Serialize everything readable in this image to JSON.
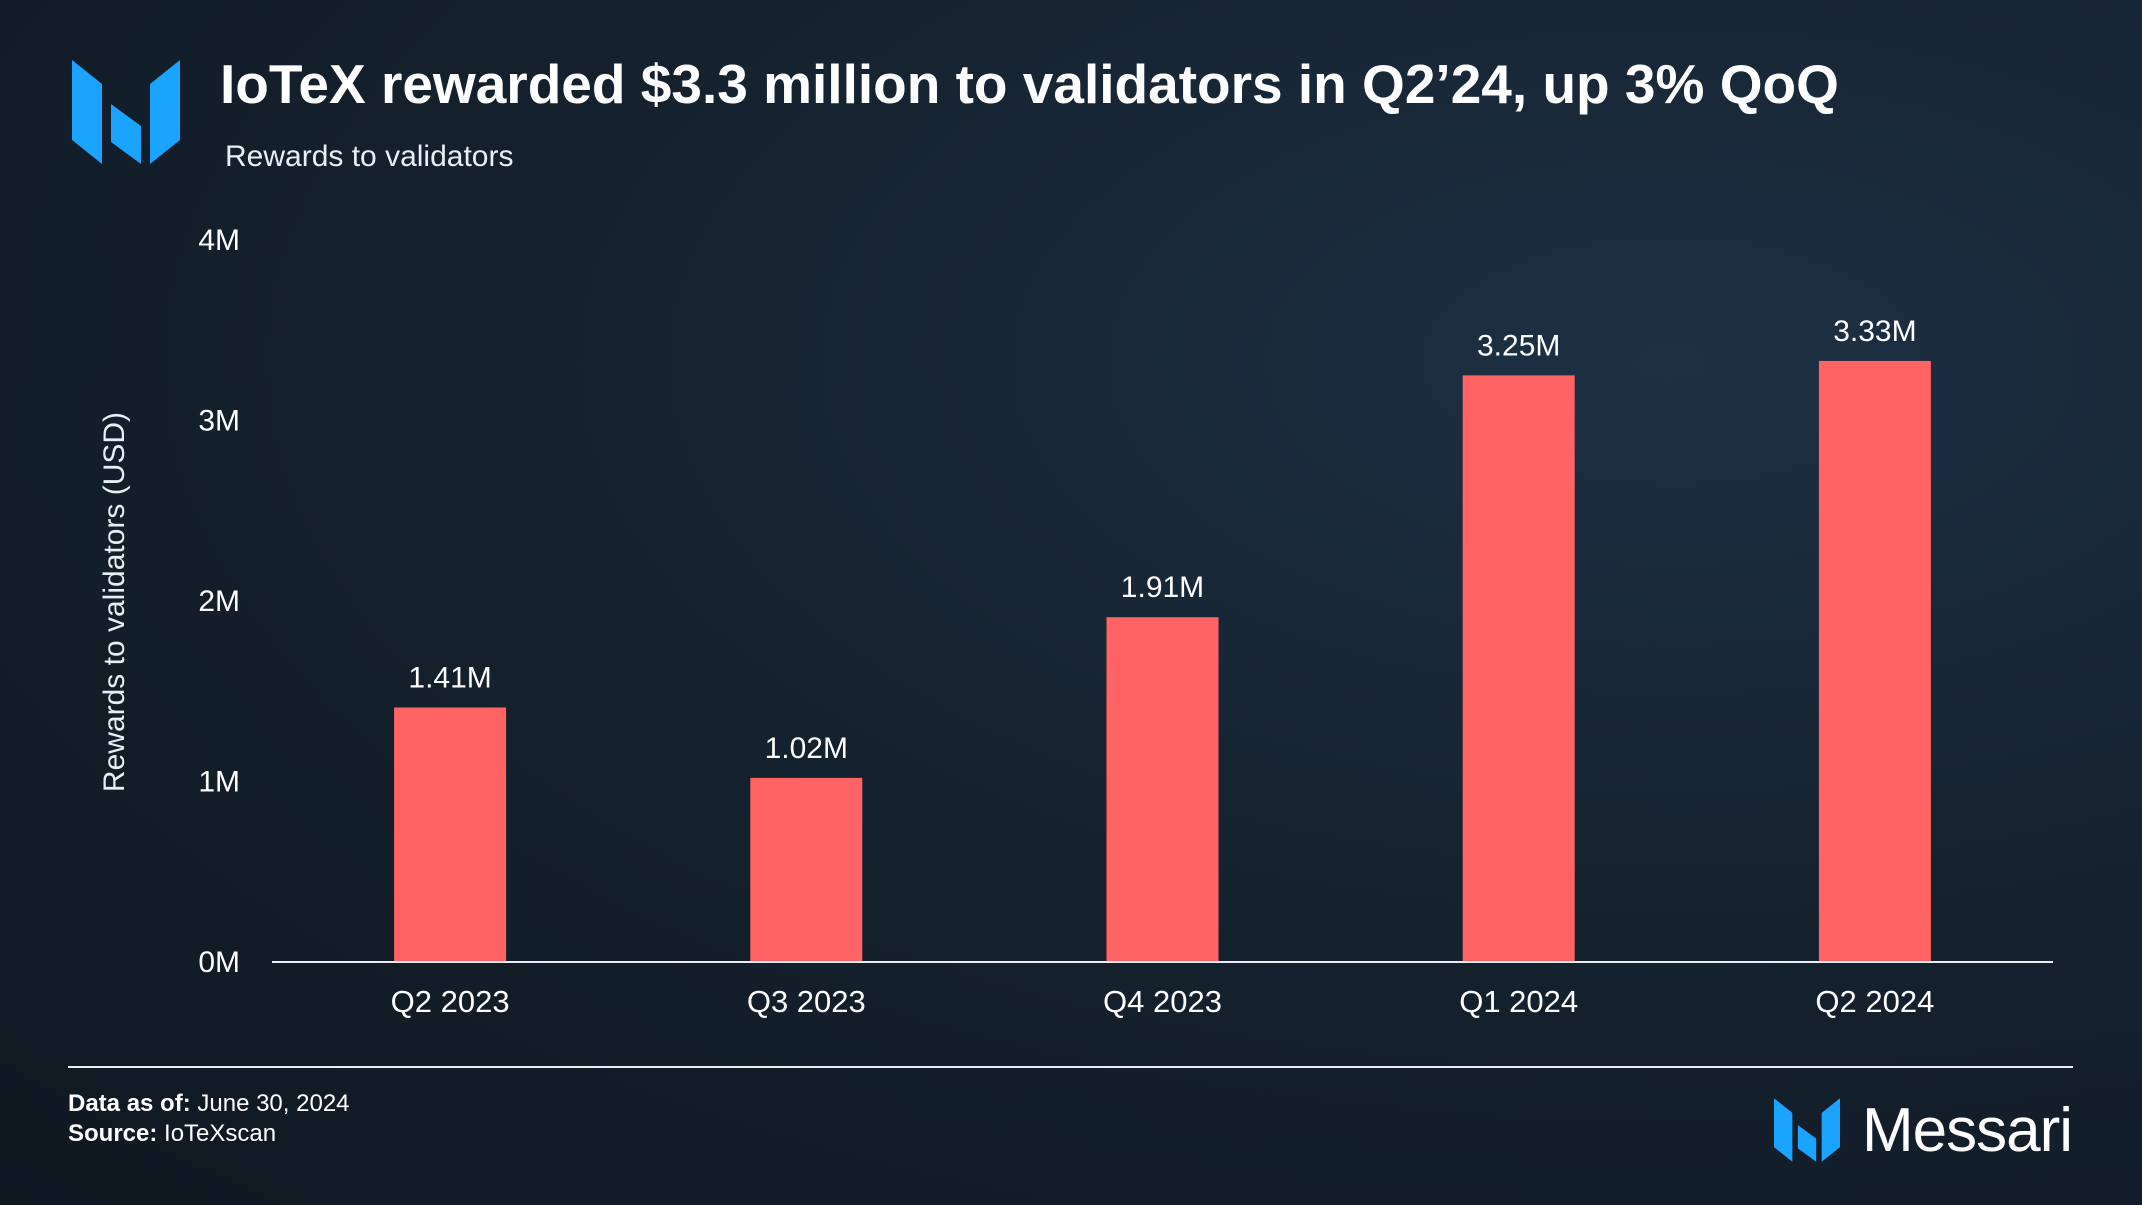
{
  "header": {
    "title": "IoTeX rewarded $3.3 million to validators in Q2’24, up 3% QoQ",
    "subtitle": "Rewards to validators"
  },
  "footer": {
    "data_as_of_label": "Data as of:",
    "data_as_of_value": "June 30, 2024",
    "source_label": "Source:",
    "source_value": "IoTeXscan",
    "brand": "Messari"
  },
  "icons": {
    "logo": "messari-logo-icon"
  },
  "colors": {
    "bar": "#ff6363",
    "brand_blue": "#1aa3ff",
    "background": "#15222f",
    "text": "#ffffff"
  },
  "chart_data": {
    "type": "bar",
    "title": "IoTeX rewarded $3.3 million to validators in Q2’24, up 3% QoQ",
    "subtitle": "Rewards to validators",
    "ylabel": "Rewards to validators (USD)",
    "xlabel": "",
    "categories": [
      "Q2 2023",
      "Q3 2023",
      "Q4 2023",
      "Q1 2024",
      "Q2 2024"
    ],
    "values": [
      1410000,
      1020000,
      1910000,
      3250000,
      3330000
    ],
    "data_labels": [
      "1.41M",
      "1.02M",
      "1.91M",
      "3.25M",
      "3.33M"
    ],
    "ylim": [
      0,
      4000000
    ],
    "yticks": [
      0,
      1000000,
      2000000,
      3000000,
      4000000
    ],
    "ytick_labels": [
      "0M",
      "1M",
      "2M",
      "3M",
      "4M"
    ],
    "grid": false,
    "legend": "none"
  }
}
